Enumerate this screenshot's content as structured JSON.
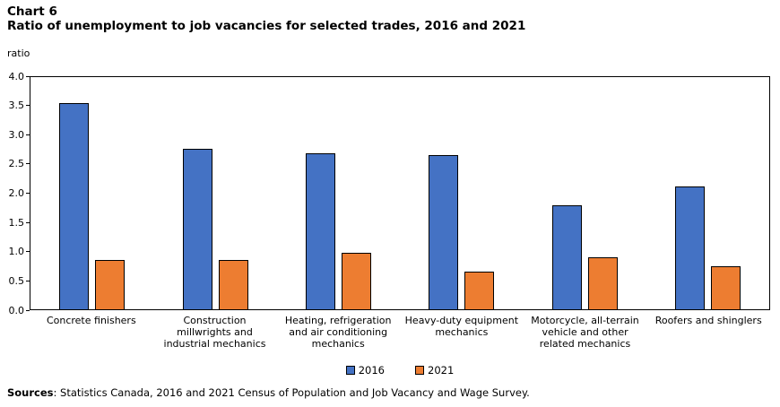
{
  "header": {
    "chart_number": "Chart 6",
    "title": "Ratio of unemployment to job vacancies for selected trades, 2016 and 2021"
  },
  "chart_data": {
    "type": "bar",
    "title": "Ratio of unemployment to job vacancies for selected trades, 2016 and 2021",
    "xlabel": "",
    "ylabel": "ratio",
    "ylim": [
      0.0,
      4.0
    ],
    "ytick_step": 0.5,
    "yticks": [
      "0.0",
      "0.5",
      "1.0",
      "1.5",
      "2.0",
      "2.5",
      "3.0",
      "3.5",
      "4.0"
    ],
    "grid": false,
    "legend_position": "bottom",
    "categories": [
      "Concrete finishers",
      "Construction millwrights and industrial mechanics",
      "Heating, refrigeration and air conditioning mechanics",
      "Heavy-duty equipment mechanics",
      "Motorcycle, all-terrain vehicle and other related mechanics",
      "Roofers and shinglers"
    ],
    "series": [
      {
        "name": "2016",
        "color": "#4472C4",
        "values": [
          3.55,
          2.77,
          2.69,
          2.66,
          1.79,
          2.12
        ]
      },
      {
        "name": "2021",
        "color": "#ED7D31",
        "values": [
          0.85,
          0.85,
          0.98,
          0.65,
          0.9,
          0.74
        ]
      }
    ],
    "bar_border_color": "#000000"
  },
  "footer": {
    "sources_label": "Sources",
    "sources_text": ": Statistics Canada, 2016 and 2021 Census of Population and Job Vacancy and Wage Survey."
  }
}
